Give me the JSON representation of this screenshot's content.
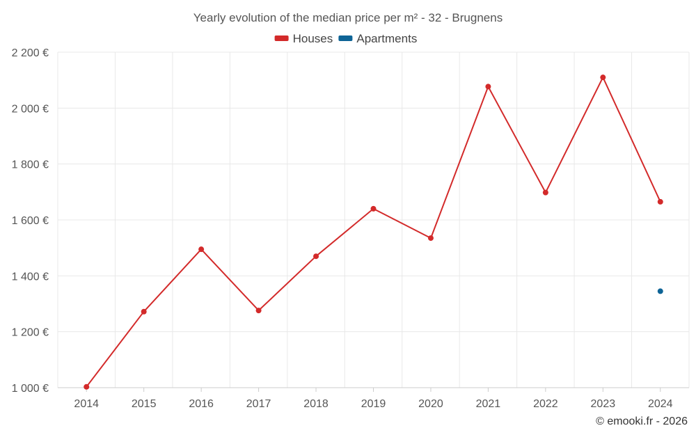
{
  "chart_data": {
    "type": "line",
    "title": "Yearly evolution of the median price per m² - 32 - Brugnens",
    "categories": [
      "2014",
      "2015",
      "2016",
      "2017",
      "2018",
      "2019",
      "2020",
      "2021",
      "2022",
      "2023",
      "2024"
    ],
    "series": [
      {
        "name": "Houses",
        "color": "#d32a2a",
        "values": [
          1003,
          1272,
          1495,
          1276,
          1470,
          1640,
          1535,
          2077,
          1698,
          2110,
          1665
        ]
      },
      {
        "name": "Apartments",
        "color": "#0e6496",
        "values": [
          null,
          null,
          null,
          null,
          null,
          null,
          null,
          null,
          null,
          null,
          1345
        ]
      }
    ],
    "ylim": [
      1000,
      2200
    ],
    "yticks": [
      1000,
      1200,
      1400,
      1600,
      1800,
      2000,
      2200
    ],
    "ytick_labels": [
      "1 000 €",
      "1 200 €",
      "1 400 €",
      "1 600 €",
      "1 800 €",
      "2 000 €",
      "2 200 €"
    ],
    "grid": true,
    "legend_position": "top-center",
    "credit": "© emooki.fr - 2026"
  }
}
